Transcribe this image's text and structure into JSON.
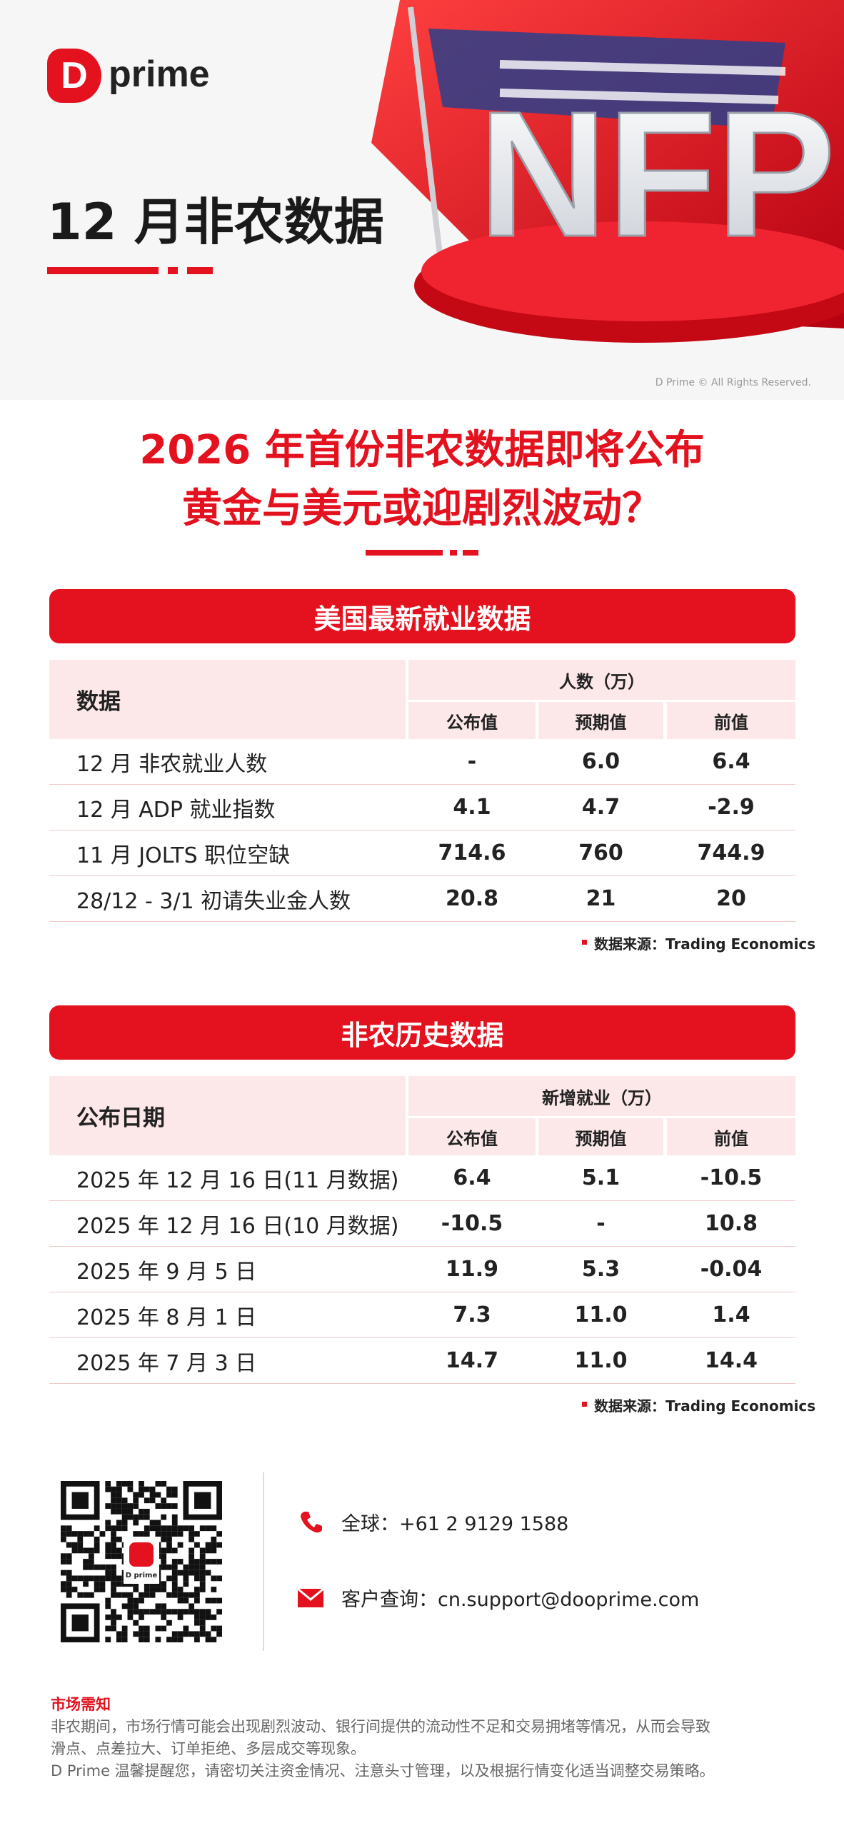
{
  "header": {
    "brand": "prime",
    "title": "12 月非农数据",
    "hero_text": "NFP",
    "copyright": "D Prime © All Rights Reserved."
  },
  "headline": [
    "2026 年首份非农数据即将公布",
    "黄金与美元或迎剧烈波动？"
  ],
  "sections": [
    {
      "title": "美国最新就业数据",
      "row_header": "数据",
      "group_header": "人数（万）",
      "columns": [
        "公布值",
        "预期值",
        "前值"
      ],
      "rows": [
        [
          "12 月 非农就业人数",
          "-",
          "6.0",
          "6.4"
        ],
        [
          "12 月 ADP 就业指数",
          "4.1",
          "4.7",
          "-2.9"
        ],
        [
          "11 月 JOLTS 职位空缺",
          "714.6",
          "760",
          "744.9"
        ],
        [
          "28/12 - 3/1 初请失业金人数",
          "20.8",
          "21",
          "20"
        ]
      ],
      "source": "数据来源：Trading Economics"
    },
    {
      "title": "非农历史数据",
      "row_header": "公布日期",
      "group_header": "新增就业（万）",
      "columns": [
        "公布值",
        "预期值",
        "前值"
      ],
      "rows": [
        [
          "2025 年 12 月 16 日(11 月数据)",
          "6.4",
          "5.1",
          "-10.5"
        ],
        [
          "2025 年 12 月 16 日(10 月数据)",
          "-10.5",
          "-",
          "10.8"
        ],
        [
          "2025 年 9 月 5 日",
          "11.9",
          "5.3",
          "-0.04"
        ],
        [
          "2025 年 8 月 1 日",
          "7.3",
          "11.0",
          "1.4"
        ],
        [
          "2025 年 7 月 3 日",
          "14.7",
          "11.0",
          "14.4"
        ]
      ],
      "source": "数据来源：Trading Economics"
    }
  ],
  "contact": {
    "phone": "全球：+61 2 9129 1588",
    "email": "客户查询：cn.support@dooprime.com",
    "qr_brand": "D prime"
  },
  "notice": {
    "title": "市场需知",
    "lines": [
      "非农期间，市场行情可能会出现剧烈波动、银行间提供的流动性不足和交易拥堵等情况，从而会导致",
      "滑点、点差拉大、订单拒绝、多层成交等现象。",
      "D Prime 温馨提醒您，请密切关注资金情况、注意头寸管理，以及根据行情变化适当调整交易策略。"
    ]
  }
}
